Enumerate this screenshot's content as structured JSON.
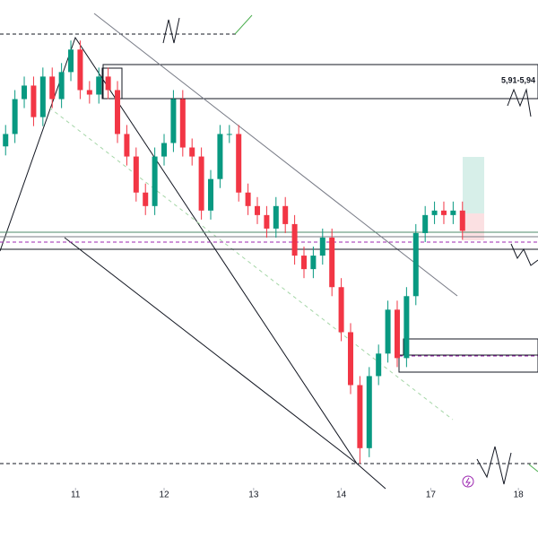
{
  "chart_data": {
    "type": "candlestick",
    "annotation": "5,91-5,94",
    "up_color": "#089981",
    "down_color": "#f23645",
    "xlim": [
      -0.6,
      57.1
    ],
    "xticks": [
      {
        "value": 7.5,
        "label": "11"
      },
      {
        "value": 17,
        "label": "12"
      },
      {
        "value": 26.6,
        "label": "13"
      },
      {
        "value": 36,
        "label": "14"
      },
      {
        "value": 45.6,
        "label": "17"
      },
      {
        "value": 55,
        "label": "18"
      }
    ],
    "ylim": [
      5.57,
      6.0
    ],
    "open": [
      5.87,
      5.881,
      5.912,
      5.924,
      5.896,
      5.932,
      5.912,
      5.936,
      5.956,
      5.92,
      5.916,
      5.932,
      5.92,
      5.881,
      5.861,
      5.829,
      5.817,
      5.861,
      5.873,
      5.912,
      5.869,
      5.861,
      5.813,
      5.841,
      5.881,
      5.881,
      5.829,
      5.817,
      5.809,
      5.797,
      5.817,
      5.801,
      5.773,
      5.761,
      5.773,
      5.789,
      5.745,
      5.705,
      5.658,
      5.602,
      5.666,
      5.686,
      5.725,
      5.682,
      5.737,
      5.793,
      5.809,
      5.813,
      5.809,
      5.813
    ],
    "high": [
      5.889,
      5.92,
      5.932,
      5.932,
      5.94,
      5.94,
      5.944,
      5.964,
      5.964,
      5.928,
      5.94,
      5.94,
      5.928,
      5.889,
      5.869,
      5.837,
      5.869,
      5.881,
      5.92,
      5.92,
      5.877,
      5.869,
      5.849,
      5.889,
      5.889,
      5.889,
      5.837,
      5.825,
      5.817,
      5.825,
      5.825,
      5.809,
      5.781,
      5.781,
      5.797,
      5.797,
      5.753,
      5.713,
      5.666,
      5.674,
      5.694,
      5.733,
      5.733,
      5.745,
      5.801,
      5.817,
      5.821,
      5.821,
      5.821,
      5.821
    ],
    "low": [
      5.862,
      5.873,
      5.904,
      5.888,
      5.888,
      5.904,
      5.904,
      5.928,
      5.912,
      5.908,
      5.908,
      5.912,
      5.873,
      5.853,
      5.821,
      5.809,
      5.809,
      5.853,
      5.865,
      5.861,
      5.853,
      5.805,
      5.805,
      5.833,
      5.873,
      5.821,
      5.809,
      5.801,
      5.789,
      5.789,
      5.793,
      5.765,
      5.753,
      5.753,
      5.765,
      5.737,
      5.697,
      5.65,
      5.588,
      5.594,
      5.658,
      5.678,
      5.674,
      5.674,
      5.729,
      5.785,
      5.801,
      5.801,
      5.801,
      5.787
    ],
    "close": [
      5.881,
      5.912,
      5.924,
      5.896,
      5.932,
      5.912,
      5.936,
      5.956,
      5.92,
      5.916,
      5.932,
      5.92,
      5.881,
      5.861,
      5.829,
      5.817,
      5.861,
      5.873,
      5.912,
      5.869,
      5.861,
      5.813,
      5.841,
      5.881,
      5.881,
      5.829,
      5.817,
      5.809,
      5.797,
      5.817,
      5.801,
      5.773,
      5.761,
      5.773,
      5.789,
      5.745,
      5.705,
      5.658,
      5.602,
      5.666,
      5.686,
      5.725,
      5.682,
      5.737,
      5.793,
      5.809,
      5.813,
      5.809,
      5.813,
      5.795
    ]
  }
}
